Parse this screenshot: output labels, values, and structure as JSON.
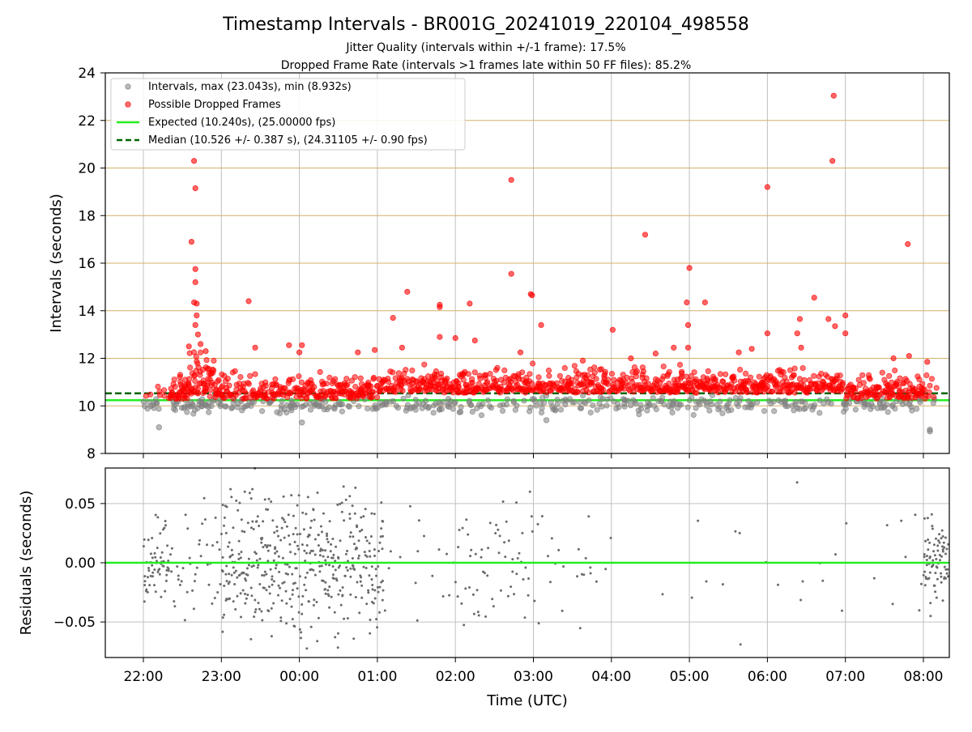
{
  "header": {
    "title": "Timestamp Intervals - BR001G_20241019_220104_498558",
    "subtitle_1": "Jitter Quality (intervals within +/-1 frame): 17.5%",
    "subtitle_2": "Dropped Frame Rate (intervals >1 frames late within 50 FF files): 85.2%"
  },
  "colors": {
    "intervals": "#808080",
    "dropped": "#ff0000",
    "expected": "#22ee22",
    "median": "#006400",
    "gold_grid": "#d4b06a",
    "grid": "#c0c0c0"
  },
  "chart_data": [
    {
      "type": "scatter",
      "xlabel": "",
      "ylabel": "Intervals (seconds)",
      "ylim": [
        8,
        24
      ],
      "y_ticks": [
        "8",
        "10",
        "12",
        "14",
        "16",
        "18",
        "20",
        "22",
        "24"
      ],
      "grid": true,
      "legend_placement": "top-left",
      "legend": [
        {
          "label": "Intervals, max (23.043s), min (8.932s)"
        },
        {
          "label": "Possible Dropped Frames"
        },
        {
          "label": "Expected (10.240s), (25.00000 fps)"
        },
        {
          "label": "Median (10.526 +/- 0.387 s), (24.31105 +/- 0.90 fps)"
        }
      ],
      "expected": 10.24,
      "median": 10.526,
      "series": [
        {
          "name": "Possible Dropped Frames",
          "points": [
            [
              "22:37",
              16.9
            ],
            [
              "22:39",
              20.3
            ],
            [
              "22:40",
              19.15
            ],
            [
              "22:40",
              15.75
            ],
            [
              "22:40",
              15.2
            ],
            [
              "22:39",
              14.35
            ],
            [
              "22:41",
              14.3
            ],
            [
              "22:41",
              13.8
            ],
            [
              "22:40",
              13.4
            ],
            [
              "22:42",
              13.0
            ],
            [
              "22:44",
              12.6
            ],
            [
              "22:48",
              12.3
            ],
            [
              "22:35",
              12.5
            ],
            [
              "23:21",
              14.4
            ],
            [
              "23:26",
              12.45
            ],
            [
              "23:52",
              12.55
            ],
            [
              "00:00",
              12.25
            ],
            [
              "00:02",
              12.55
            ],
            [
              "00:45",
              12.25
            ],
            [
              "00:58",
              12.35
            ],
            [
              "01:12",
              13.7
            ],
            [
              "01:19",
              12.45
            ],
            [
              "01:23",
              14.8
            ],
            [
              "01:48",
              14.25
            ],
            [
              "01:48",
              14.15
            ],
            [
              "01:48",
              12.9
            ],
            [
              "02:00",
              12.85
            ],
            [
              "02:11",
              14.3
            ],
            [
              "02:15",
              12.75
            ],
            [
              "02:43",
              19.5
            ],
            [
              "02:43",
              15.55
            ],
            [
              "02:50",
              12.25
            ],
            [
              "02:58",
              14.7
            ],
            [
              "02:59",
              14.65
            ],
            [
              "03:06",
              13.4
            ],
            [
              "03:38",
              11.9
            ],
            [
              "04:01",
              13.2
            ],
            [
              "04:15",
              12.0
            ],
            [
              "04:26",
              17.2
            ],
            [
              "04:34",
              12.2
            ],
            [
              "04:48",
              12.45
            ],
            [
              "04:58",
              14.35
            ],
            [
              "05:00",
              15.8
            ],
            [
              "04:59",
              13.4
            ],
            [
              "04:59",
              12.45
            ],
            [
              "05:12",
              14.35
            ],
            [
              "05:38",
              12.25
            ],
            [
              "05:48",
              12.4
            ],
            [
              "06:00",
              19.2
            ],
            [
              "06:00",
              13.05
            ],
            [
              "06:23",
              13.05
            ],
            [
              "06:25",
              13.65
            ],
            [
              "06:26",
              12.45
            ],
            [
              "06:36",
              14.55
            ],
            [
              "06:47",
              13.65
            ],
            [
              "06:52",
              13.35
            ],
            [
              "06:50",
              20.3
            ],
            [
              "06:51",
              23.04
            ],
            [
              "07:00",
              13.8
            ],
            [
              "07:00",
              13.05
            ],
            [
              "07:37",
              12.0
            ],
            [
              "07:48",
              16.8
            ],
            [
              "07:49",
              12.1
            ],
            [
              "08:03",
              11.85
            ]
          ]
        }
      ]
    },
    {
      "type": "scatter",
      "xlabel": "Time (UTC)",
      "ylabel": "Residuals (seconds)",
      "ylim": [
        -0.08,
        0.08
      ],
      "y_ticks": [
        "0.05",
        "0.00",
        "−0.05"
      ],
      "x_ticks": [
        "22:00",
        "23:00",
        "00:00",
        "01:00",
        "02:00",
        "03:00",
        "04:00",
        "05:00",
        "06:00",
        "07:00",
        "08:00"
      ],
      "grid": true,
      "zero_line": 0
    }
  ]
}
